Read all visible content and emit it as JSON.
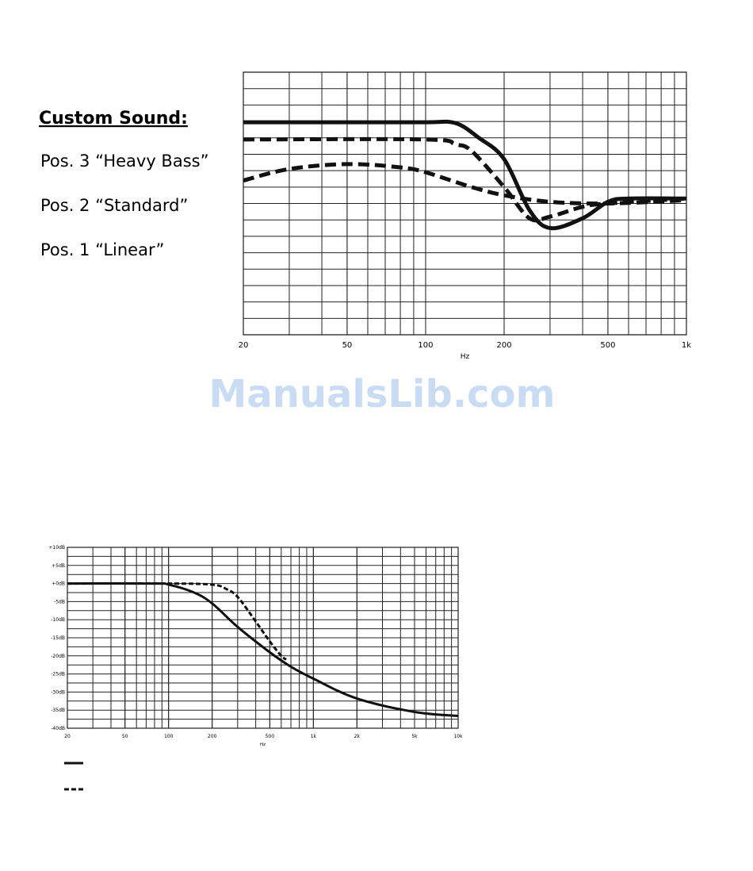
{
  "chart_data": [
    {
      "type": "line",
      "legend_title": "Custom Sound:",
      "xlabel": "Hz",
      "xscale": "log",
      "xlim": [
        20,
        1000
      ],
      "ylim": [
        0,
        16
      ],
      "xticks": [
        20,
        50,
        100,
        200,
        500,
        {
          "value": 1000,
          "label": "1k"
        }
      ],
      "series": [
        {
          "name": "Pos. 3 “Heavy Bass”",
          "color": "#111111",
          "style": "solid",
          "x": [
            20,
            50,
            100,
            130,
            160,
            200,
            250,
            300,
            400,
            500,
            600,
            1000
          ],
          "values": [
            12.95,
            12.95,
            12.95,
            12.9,
            12.0,
            10.7,
            7.6,
            6.5,
            7.1,
            8.1,
            8.3,
            8.3
          ]
        },
        {
          "name": "Pos. 2 “Standard”",
          "color": "#111111",
          "style": "dashed",
          "x": [
            20,
            100,
            130,
            150,
            200,
            250,
            300,
            400,
            500,
            1000
          ],
          "values": [
            11.9,
            11.9,
            11.6,
            11.2,
            9.0,
            7.1,
            7.2,
            7.8,
            8.0,
            8.3
          ]
        },
        {
          "name": "Pos. 1 “Linear”",
          "color": "#111111",
          "style": "dashed",
          "x": [
            20,
            30,
            50,
            80,
            100,
            150,
            200,
            300,
            500,
            1000
          ],
          "values": [
            9.4,
            10.1,
            10.4,
            10.2,
            9.9,
            9.0,
            8.5,
            8.1,
            8.0,
            8.2
          ]
        }
      ]
    },
    {
      "type": "line",
      "xlabel": "Hz",
      "xscale": "log",
      "xlim": [
        20,
        10000
      ],
      "ylim": [
        -40,
        10
      ],
      "xticks": [
        20,
        50,
        100,
        200,
        500,
        {
          "value": 1000,
          "label": "1k"
        },
        {
          "value": 2000,
          "label": "2k"
        },
        {
          "value": 5000,
          "label": "5k"
        },
        {
          "value": 10000,
          "label": "10k"
        }
      ],
      "yticks": [
        {
          "value": 10,
          "label": "+10dB"
        },
        {
          "value": 5,
          "label": "+5dB"
        },
        {
          "value": 0,
          "label": "+0dB"
        },
        {
          "value": -5,
          "label": "-5dB"
        },
        {
          "value": -10,
          "label": "-10dB"
        },
        {
          "value": -15,
          "label": "-15dB"
        },
        {
          "value": -20,
          "label": "-20dB"
        },
        {
          "value": -25,
          "label": "-25dB"
        },
        {
          "value": -30,
          "label": "-30dB"
        },
        {
          "value": -35,
          "label": "-35dB"
        },
        {
          "value": -40,
          "label": "-40dB"
        }
      ],
      "series": [
        {
          "color": "#111111",
          "style": "solid",
          "x": [
            20,
            80,
            100,
            150,
            200,
            300,
            500,
            700,
            1000,
            2000,
            5000,
            10000
          ],
          "values": [
            0,
            0,
            -0.3,
            -2.5,
            -5.5,
            -12,
            -19,
            -23,
            -26.3,
            -31.8,
            -35.5,
            -36.6
          ]
        },
        {
          "color": "#111111",
          "style": "dashed",
          "x": [
            20,
            100,
            200,
            250,
            300,
            400,
            500,
            600,
            650
          ],
          "values": [
            0,
            0,
            -0.3,
            -1.5,
            -3.7,
            -10.5,
            -16,
            -20,
            -21
          ]
        }
      ]
    }
  ],
  "watermark": "ManualsLib.com"
}
